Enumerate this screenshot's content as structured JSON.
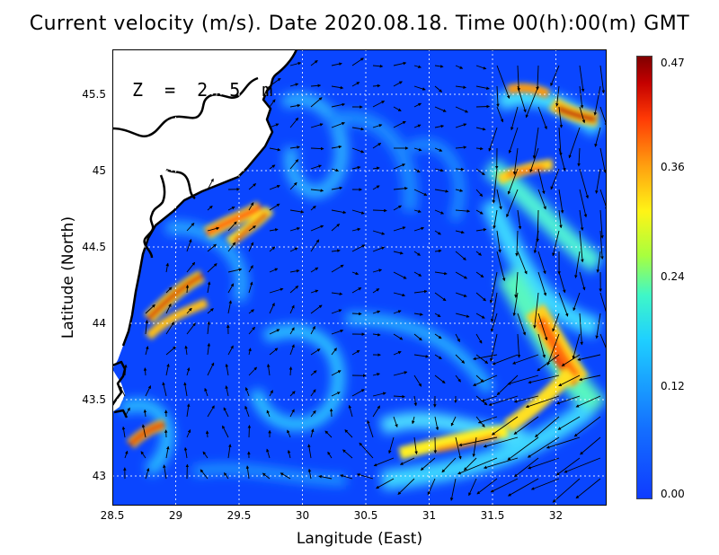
{
  "title": "Current velocity (m/s). Date 2020.08.18. Time 00(h):00(m) GMT",
  "depth_label": "Z = 2.5 m",
  "x_axis": {
    "label": "Langitude (East)",
    "ticks": [
      "28.5",
      "29",
      "29.5",
      "30",
      "30.5",
      "31",
      "31.5",
      "32"
    ],
    "range": [
      28.5,
      32.4
    ]
  },
  "y_axis": {
    "label": "Latitude (North)",
    "ticks": [
      "45.5",
      "45",
      "44.5",
      "44",
      "43.5",
      "43"
    ],
    "range": [
      42.8,
      45.8
    ]
  },
  "colorbar": {
    "ticks": [
      "0.47",
      "0.36",
      "0.24",
      "0.12",
      "0.00"
    ],
    "values": [
      0.47,
      0.36,
      0.24,
      0.12,
      0.0
    ],
    "range": [
      0.0,
      0.47
    ],
    "colormap": "jet"
  },
  "colors": {
    "background_low": "#0a46ff",
    "land": "#ffffff",
    "coastline": "#000000",
    "grid": "#ffffff",
    "arrows": "#000000"
  }
}
